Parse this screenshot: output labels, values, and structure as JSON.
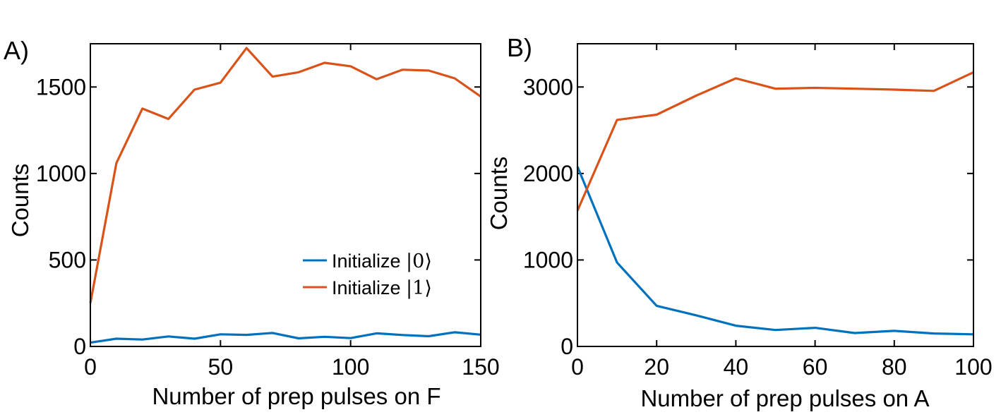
{
  "chart_data": [
    {
      "type": "line",
      "panel_label": "A)",
      "xlabel": "Number of prep pulses on F",
      "ylabel": "Counts",
      "xlim": [
        0,
        150
      ],
      "ylim": [
        0,
        1750
      ],
      "xticks": [
        0,
        50,
        100,
        150
      ],
      "yticks": [
        0,
        500,
        1000,
        1500
      ],
      "xtick_labels": [
        "0",
        "50",
        "100",
        "150"
      ],
      "ytick_labels": [
        "0",
        "500",
        "1000",
        "1500"
      ],
      "grid": false,
      "legend_position": "bottom-right",
      "x": [
        0,
        10,
        20,
        30,
        40,
        50,
        60,
        70,
        80,
        90,
        100,
        110,
        120,
        130,
        140,
        150
      ],
      "series": [
        {
          "name": "Initialize |0⟩",
          "legend_prefix": "Initialize ",
          "legend_math": "|0⟩",
          "color": "#0072BD",
          "values": [
            22,
            45,
            40,
            58,
            45,
            70,
            67,
            78,
            47,
            56,
            48,
            76,
            66,
            59,
            82,
            68
          ]
        },
        {
          "name": "Initialize |1⟩",
          "legend_prefix": "Initialize ",
          "legend_math": "|1⟩",
          "color": "#D95319",
          "values": [
            250,
            1060,
            1375,
            1315,
            1485,
            1525,
            1725,
            1560,
            1585,
            1640,
            1620,
            1545,
            1600,
            1595,
            1550,
            1445
          ]
        }
      ]
    },
    {
      "type": "line",
      "panel_label": "B)",
      "xlabel": "Number of prep pulses on A",
      "ylabel": "Counts",
      "xlim": [
        0,
        100
      ],
      "ylim": [
        0,
        3500
      ],
      "xticks": [
        0,
        20,
        40,
        60,
        80,
        100
      ],
      "yticks": [
        0,
        1000,
        2000,
        3000
      ],
      "xtick_labels": [
        "0",
        "20",
        "40",
        "60",
        "80",
        "100"
      ],
      "ytick_labels": [
        "0",
        "1000",
        "2000",
        "3000"
      ],
      "grid": false,
      "x": [
        0,
        10,
        20,
        30,
        40,
        50,
        60,
        70,
        80,
        90,
        100
      ],
      "series": [
        {
          "name": "Initialize |0⟩",
          "color": "#0072BD",
          "values": [
            2080,
            970,
            470,
            360,
            240,
            190,
            215,
            155,
            180,
            150,
            140
          ]
        },
        {
          "name": "Initialize |1⟩",
          "color": "#D95319",
          "values": [
            1570,
            2620,
            2680,
            2900,
            3100,
            2980,
            2990,
            2980,
            2970,
            2955,
            3170
          ]
        }
      ]
    }
  ]
}
